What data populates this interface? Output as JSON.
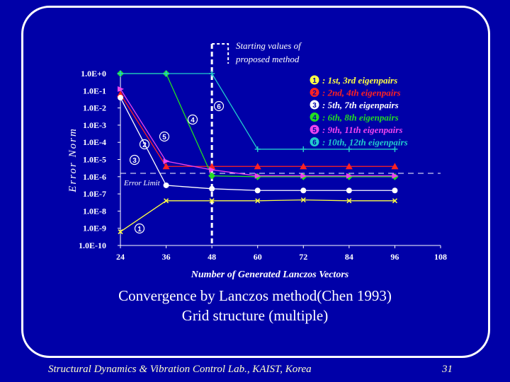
{
  "chart_data": {
    "type": "line",
    "ylabel": "Error Norm",
    "xlabel": "Number of Generated Lanczos Vectors",
    "x_ticks": [
      "24",
      "36",
      "48",
      "60",
      "72",
      "84",
      "96",
      "108"
    ],
    "xlim": [
      24,
      108
    ],
    "y_scale": "log",
    "y_ticks": [
      "1.0E+0",
      "1.0E-1",
      "1.0E-2",
      "1.0E-3",
      "1.0E-4",
      "1.0E-5",
      "1.0E-6",
      "1.0E-7",
      "1.0E-8",
      "1.0E-9",
      "1.0E-10"
    ],
    "ylim_exponent": [
      -10,
      0
    ],
    "error_limit": {
      "label": "Error Limit",
      "exponent": -5.8
    },
    "annotation": "Starting values of proposed method",
    "annotation_x": 48,
    "series": [
      {
        "marker": "1",
        "name": "1st, 3rd eigenpairs",
        "color": "#ffff44",
        "symbol": "x",
        "points": [
          [
            24,
            -9.2
          ],
          [
            36,
            -7.4
          ],
          [
            48,
            -7.4
          ],
          [
            60,
            -7.4
          ],
          [
            72,
            -7.35
          ],
          [
            84,
            -7.4
          ],
          [
            96,
            -7.4
          ]
        ]
      },
      {
        "marker": "2",
        "name": "2nd, 4th eigenpairs",
        "color": "#ff2222",
        "symbol": "triangle",
        "points": [
          [
            24,
            -1.2
          ],
          [
            36,
            -5.4
          ],
          [
            48,
            -5.4
          ],
          [
            60,
            -5.4
          ],
          [
            72,
            -5.4
          ],
          [
            84,
            -5.4
          ],
          [
            96,
            -5.4
          ]
        ]
      },
      {
        "marker": "3",
        "name": "5th, 7th eigenpairs",
        "color": "#ffffff",
        "symbol": "circle",
        "points": [
          [
            24,
            -1.4
          ],
          [
            36,
            -6.5
          ],
          [
            48,
            -6.7
          ],
          [
            60,
            -6.8
          ],
          [
            72,
            -6.8
          ],
          [
            84,
            -6.8
          ],
          [
            96,
            -6.8
          ]
        ]
      },
      {
        "marker": "4",
        "name": "6th, 8th eigenpairs",
        "color": "#22dd22",
        "symbol": "diamond",
        "points": [
          [
            24,
            0
          ],
          [
            36,
            0
          ],
          [
            48,
            -5.95
          ],
          [
            60,
            -6.0
          ],
          [
            72,
            -6.0
          ],
          [
            84,
            -6.0
          ],
          [
            96,
            -6.0
          ]
        ]
      },
      {
        "marker": "5",
        "name": "9th, 11th eigenpairs",
        "color": "#ee44ee",
        "symbol": "triangle-right",
        "points": [
          [
            24,
            -0.9
          ],
          [
            36,
            -5.1
          ],
          [
            48,
            -5.6
          ],
          [
            60,
            -5.95
          ],
          [
            72,
            -5.95
          ],
          [
            84,
            -5.95
          ],
          [
            96,
            -5.95
          ]
        ]
      },
      {
        "marker": "6",
        "name": "10th, 12th eigenpairs",
        "color": "#22cccc",
        "symbol": "plus",
        "points": [
          [
            24,
            0
          ],
          [
            36,
            0
          ],
          [
            48,
            0
          ],
          [
            60,
            -4.4
          ],
          [
            72,
            -4.4
          ],
          [
            84,
            -4.4
          ],
          [
            96,
            -4.4
          ]
        ]
      }
    ]
  },
  "caption_line1": "Convergence by Lanczos method(Chen 1993)",
  "caption_line2": "Grid structure (multiple)",
  "footer": "Structural Dynamics & Vibration Control Lab., KAIST, Korea",
  "page_number": "31"
}
